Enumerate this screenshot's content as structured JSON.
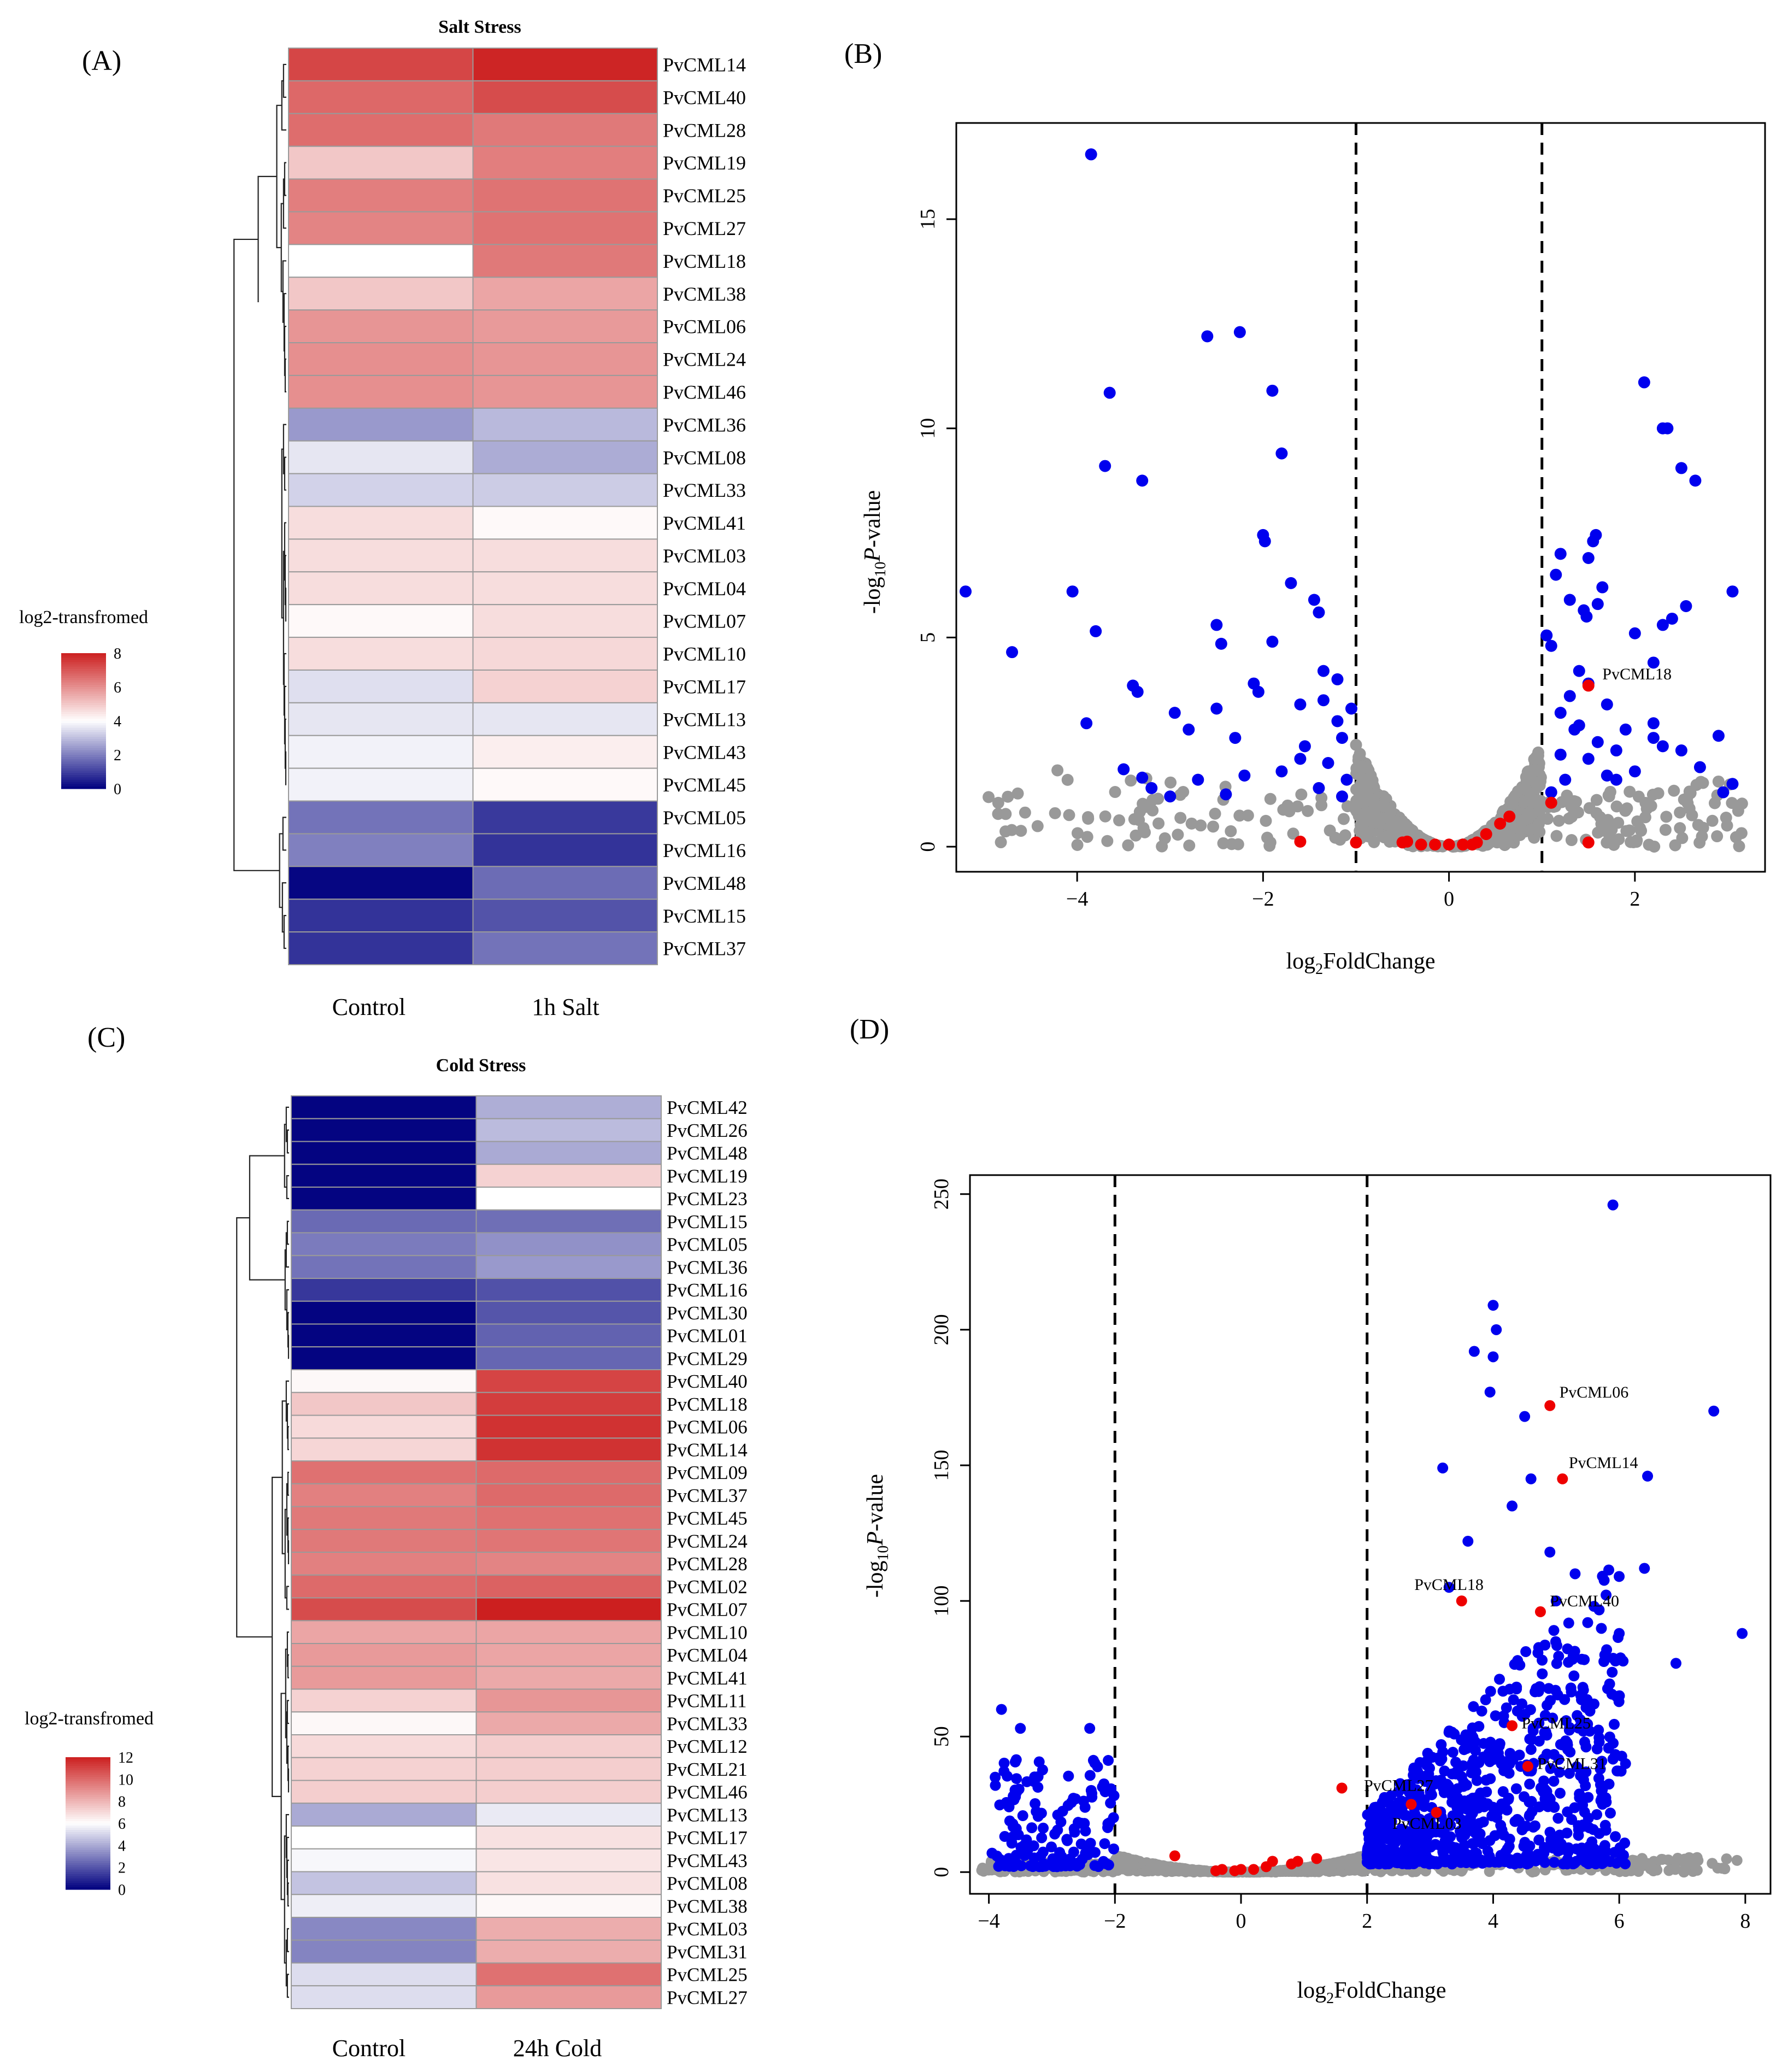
{
  "panel_labels": [
    "(A)",
    "(B)",
    "(C)",
    "(D)"
  ],
  "colors": {
    "low": "#00007f",
    "mid": "#ffffff",
    "high": "#cc1f1f",
    "up_sig": "#0000ee",
    "nonsig": "#999999",
    "cml": "#ee0000"
  },
  "chart_data": [
    {
      "id": "A",
      "type": "heatmap",
      "title": "Salt Stress",
      "columns": [
        "Control",
        "1h Salt"
      ],
      "rows": [
        "PvCML14",
        "PvCML40",
        "PvCML28",
        "PvCML19",
        "PvCML25",
        "PvCML27",
        "PvCML18",
        "PvCML38",
        "PvCML06",
        "PvCML24",
        "PvCML46",
        "PvCML36",
        "PvCML08",
        "PvCML33",
        "PvCML41",
        "PvCML03",
        "PvCML04",
        "PvCML07",
        "PvCML10",
        "PvCML17",
        "PvCML13",
        "PvCML43",
        "PvCML45",
        "PvCML05",
        "PvCML16",
        "PvCML48",
        "PvCML15",
        "PvCML37"
      ],
      "values": [
        [
          7.3,
          7.9
        ],
        [
          6.7,
          7.2
        ],
        [
          6.6,
          6.4
        ],
        [
          5.0,
          6.3
        ],
        [
          6.3,
          6.5
        ],
        [
          6.2,
          6.5
        ],
        [
          4.0,
          6.4
        ],
        [
          5.0,
          5.6
        ],
        [
          5.9,
          5.8
        ],
        [
          6.0,
          5.9
        ],
        [
          6.0,
          5.9
        ],
        [
          2.4,
          2.9
        ],
        [
          3.6,
          2.7
        ],
        [
          3.3,
          3.2
        ],
        [
          4.6,
          4.1
        ],
        [
          4.6,
          4.6
        ],
        [
          4.6,
          4.6
        ],
        [
          4.1,
          4.6
        ],
        [
          4.6,
          4.7
        ],
        [
          3.5,
          4.8
        ],
        [
          3.6,
          3.6
        ],
        [
          3.8,
          4.3
        ],
        [
          3.8,
          4.1
        ],
        [
          1.8,
          0.9
        ],
        [
          2.0,
          0.8
        ],
        [
          0.1,
          1.7
        ],
        [
          0.8,
          1.3
        ],
        [
          0.8,
          1.8
        ]
      ],
      "legend": {
        "title": "log2-transfromed",
        "ticks": [
          0,
          2,
          4,
          6,
          8
        ],
        "range": [
          0,
          8
        ]
      }
    },
    {
      "id": "B",
      "type": "scatter",
      "xlabel": "log2FoldChange",
      "ylabel": "-log10P-value",
      "xticks": [
        -4,
        -2,
        0,
        2
      ],
      "yticks": [
        0,
        5,
        10,
        15
      ],
      "xlim": [
        -5.3,
        3.4
      ],
      "ylim": [
        -0.6,
        17.3
      ],
      "thresholds": [
        -1,
        1
      ],
      "funnel_k": 2.5,
      "nonsig_count": 720,
      "sig_blue": [
        [
          -5.2,
          6.1
        ],
        [
          -4.7,
          4.65
        ],
        [
          -4.05,
          6.1
        ],
        [
          -3.9,
          2.95
        ],
        [
          -3.8,
          5.15
        ],
        [
          -3.85,
          16.55
        ],
        [
          -3.7,
          9.1
        ],
        [
          -3.65,
          10.85
        ],
        [
          -3.3,
          8.75
        ],
        [
          -3.4,
          3.85
        ],
        [
          -3.35,
          3.7
        ],
        [
          -2.6,
          12.2
        ],
        [
          -2.25,
          12.3
        ],
        [
          -1.9,
          10.9
        ],
        [
          -1.8,
          9.4
        ],
        [
          -2.0,
          7.45
        ],
        [
          -1.98,
          7.3
        ],
        [
          -2.5,
          5.3
        ],
        [
          -2.45,
          4.85
        ],
        [
          -2.95,
          3.2
        ],
        [
          -2.8,
          2.8
        ],
        [
          -2.5,
          3.3
        ],
        [
          -2.3,
          2.6
        ],
        [
          -1.9,
          4.9
        ],
        [
          -1.7,
          6.3
        ],
        [
          -1.45,
          5.9
        ],
        [
          -1.4,
          5.6
        ],
        [
          -1.2,
          3.0
        ],
        [
          -1.15,
          2.6
        ],
        [
          -1.35,
          3.5
        ],
        [
          -1.6,
          2.1
        ],
        [
          -1.1,
          1.6
        ],
        [
          -1.4,
          1.4
        ],
        [
          -3.5,
          1.85
        ],
        [
          -3.3,
          1.65
        ],
        [
          -3.2,
          1.4
        ],
        [
          -3.0,
          1.2
        ],
        [
          -2.1,
          3.9
        ],
        [
          -2.05,
          3.7
        ],
        [
          -2.7,
          1.6
        ],
        [
          -2.4,
          1.25
        ],
        [
          -1.55,
          2.4
        ],
        [
          -1.3,
          2.0
        ],
        [
          -1.15,
          1.2
        ],
        [
          -1.6,
          3.4
        ],
        [
          -1.8,
          1.8
        ],
        [
          -2.2,
          1.7
        ],
        [
          -1.2,
          4.0
        ],
        [
          -1.05,
          3.3
        ],
        [
          -1.35,
          4.2
        ],
        [
          1.05,
          5.05
        ],
        [
          1.1,
          4.8
        ],
        [
          1.15,
          6.5
        ],
        [
          1.2,
          7.0
        ],
        [
          1.3,
          5.9
        ],
        [
          1.5,
          6.9
        ],
        [
          1.55,
          7.3
        ],
        [
          1.58,
          7.45
        ],
        [
          1.45,
          5.65
        ],
        [
          1.48,
          5.5
        ],
        [
          1.6,
          5.8
        ],
        [
          1.65,
          6.2
        ],
        [
          1.2,
          3.2
        ],
        [
          1.3,
          3.6
        ],
        [
          1.4,
          4.2
        ],
        [
          1.5,
          3.9
        ],
        [
          1.35,
          2.8
        ],
        [
          1.6,
          2.5
        ],
        [
          1.7,
          3.4
        ],
        [
          1.8,
          2.3
        ],
        [
          2.0,
          5.1
        ],
        [
          2.1,
          11.1
        ],
        [
          2.3,
          10.0
        ],
        [
          2.35,
          10.0
        ],
        [
          2.5,
          9.05
        ],
        [
          2.65,
          8.75
        ],
        [
          2.3,
          5.3
        ],
        [
          2.2,
          4.4
        ],
        [
          2.4,
          5.45
        ],
        [
          2.55,
          5.75
        ],
        [
          3.05,
          6.1
        ],
        [
          2.2,
          2.6
        ],
        [
          2.3,
          2.4
        ],
        [
          2.5,
          2.3
        ],
        [
          2.7,
          1.9
        ],
        [
          2.9,
          2.65
        ],
        [
          3.05,
          1.5
        ],
        [
          2.0,
          1.8
        ],
        [
          1.8,
          1.6
        ],
        [
          1.25,
          1.6
        ],
        [
          1.1,
          1.3
        ],
        [
          1.9,
          2.8
        ],
        [
          1.5,
          2.1
        ],
        [
          1.4,
          2.9
        ],
        [
          1.7,
          1.7
        ],
        [
          1.2,
          2.2
        ],
        [
          2.2,
          2.95
        ],
        [
          2.95,
          1.3
        ]
      ],
      "cml_points": [
        [
          1.5,
          3.85
        ],
        [
          1.1,
          1.05
        ],
        [
          1.5,
          0.1
        ],
        [
          0.65,
          0.72
        ],
        [
          0.55,
          0.55
        ],
        [
          0.4,
          0.3
        ],
        [
          0.3,
          0.1
        ],
        [
          0.25,
          0.05
        ],
        [
          0.15,
          0.05
        ],
        [
          0.0,
          0.05
        ],
        [
          -0.15,
          0.05
        ],
        [
          -0.3,
          0.05
        ],
        [
          -0.45,
          0.12
        ],
        [
          -0.5,
          0.1
        ],
        [
          -1.6,
          0.12
        ],
        [
          -1.0,
          0.1
        ]
      ],
      "annotations": [
        {
          "text": "PvCML18",
          "x": 1.65,
          "y": 4.0
        }
      ]
    },
    {
      "id": "C",
      "type": "heatmap",
      "title": "Cold Stress",
      "columns": [
        "Control",
        "24h Cold"
      ],
      "rows": [
        "PvCML42",
        "PvCML26",
        "PvCML48",
        "PvCML19",
        "PvCML23",
        "PvCML15",
        "PvCML05",
        "PvCML36",
        "PvCML16",
        "PvCML30",
        "PvCML01",
        "PvCML29",
        "PvCML40",
        "PvCML18",
        "PvCML06",
        "PvCML14",
        "PvCML09",
        "PvCML37",
        "PvCML45",
        "PvCML24",
        "PvCML28",
        "PvCML02",
        "PvCML07",
        "PvCML10",
        "PvCML04",
        "PvCML41",
        "PvCML11",
        "PvCML33",
        "PvCML12",
        "PvCML21",
        "PvCML46",
        "PvCML13",
        "PvCML17",
        "PvCML43",
        "PvCML08",
        "PvCML38",
        "PvCML03",
        "PvCML31",
        "PvCML25",
        "PvCML27"
      ],
      "values": [
        [
          0.1,
          4.1
        ],
        [
          0.1,
          4.4
        ],
        [
          0.1,
          4.0
        ],
        [
          0.1,
          7.2
        ],
        [
          0.1,
          6.0
        ],
        [
          2.5,
          2.6
        ],
        [
          2.9,
          3.4
        ],
        [
          2.7,
          3.6
        ],
        [
          1.3,
          1.9
        ],
        [
          0.1,
          2.0
        ],
        [
          0.1,
          2.3
        ],
        [
          0.1,
          2.4
        ],
        [
          6.2,
          11.0
        ],
        [
          7.5,
          11.2
        ],
        [
          7.0,
          11.5
        ],
        [
          7.1,
          11.5
        ],
        [
          9.8,
          10.0
        ],
        [
          9.4,
          10.0
        ],
        [
          9.6,
          9.8
        ],
        [
          9.6,
          9.7
        ],
        [
          9.4,
          9.3
        ],
        [
          10.0,
          10.2
        ],
        [
          10.8,
          12.0
        ],
        [
          8.4,
          8.4
        ],
        [
          8.7,
          8.4
        ],
        [
          8.7,
          8.3
        ],
        [
          7.2,
          8.8
        ],
        [
          6.2,
          8.3
        ],
        [
          7.0,
          7.3
        ],
        [
          7.2,
          7.3
        ],
        [
          7.3,
          7.3
        ],
        [
          4.0,
          5.5
        ],
        [
          6.0,
          6.8
        ],
        [
          5.8,
          6.7
        ],
        [
          4.6,
          6.8
        ],
        [
          5.6,
          6.2
        ],
        [
          3.2,
          8.2
        ],
        [
          3.1,
          8.2
        ],
        [
          5.2,
          9.8
        ],
        [
          5.2,
          8.7
        ]
      ],
      "legend": {
        "title": "log2-transfromed",
        "ticks": [
          0,
          2,
          4,
          6,
          8,
          10,
          12
        ],
        "range": [
          0,
          12
        ]
      }
    },
    {
      "id": "D",
      "type": "scatter",
      "xlabel": "log2FoldChange",
      "ylabel": "-log10P-value",
      "xticks": [
        -4,
        -2,
        0,
        2,
        4,
        6,
        8
      ],
      "yticks": [
        0,
        50,
        100,
        150,
        200,
        250
      ],
      "xlim": [
        -4.3,
        8.4
      ],
      "ylim": [
        -8,
        257
      ],
      "thresholds": [
        -2,
        2
      ],
      "funnel_k": 6.5,
      "nonsig_count": 1100,
      "blue_left_count": 140,
      "blue_right_count": 820,
      "sig_blue": [
        [
          5.9,
          246
        ],
        [
          4.0,
          209
        ],
        [
          4.05,
          200
        ],
        [
          4.0,
          190
        ],
        [
          3.7,
          192
        ],
        [
          3.95,
          177
        ],
        [
          4.5,
          168
        ],
        [
          7.5,
          170
        ],
        [
          6.45,
          146
        ],
        [
          3.2,
          149
        ],
        [
          4.6,
          145
        ],
        [
          6.4,
          112
        ],
        [
          7.95,
          88
        ],
        [
          6.9,
          77
        ],
        [
          -3.8,
          60
        ],
        [
          -3.5,
          53
        ],
        [
          -3.9,
          35
        ],
        [
          -2.4,
          53
        ],
        [
          -3.95,
          7
        ],
        [
          4.3,
          135
        ],
        [
          3.6,
          122
        ],
        [
          4.9,
          118
        ],
        [
          5.3,
          110
        ],
        [
          3.3,
          105
        ],
        [
          5.0,
          100
        ],
        [
          5.6,
          98
        ],
        [
          5.5,
          92
        ],
        [
          6.0,
          88
        ],
        [
          5.8,
          82
        ],
        [
          6.1,
          40
        ],
        [
          5.7,
          38
        ],
        [
          5.6,
          62
        ]
      ],
      "cml_points": [
        [
          4.9,
          172
        ],
        [
          5.1,
          145
        ],
        [
          3.5,
          100
        ],
        [
          4.75,
          96
        ],
        [
          4.3,
          54
        ],
        [
          4.55,
          39
        ],
        [
          1.6,
          31
        ],
        [
          2.7,
          25
        ],
        [
          3.1,
          22
        ],
        [
          1.2,
          5
        ],
        [
          0.9,
          4
        ],
        [
          0.8,
          3
        ],
        [
          0.5,
          4
        ],
        [
          0.4,
          2
        ],
        [
          0.2,
          1
        ],
        [
          0.0,
          1
        ],
        [
          -0.1,
          0.5
        ],
        [
          -0.3,
          1
        ],
        [
          -0.4,
          0.5
        ],
        [
          -1.05,
          6
        ]
      ],
      "annotations": [
        {
          "text": "PvCML06",
          "x": 5.05,
          "y": 175
        },
        {
          "text": "PvCML14",
          "x": 5.2,
          "y": 149
        },
        {
          "text": "PvCML18",
          "x": 2.75,
          "y": 104
        },
        {
          "text": "PvCML40",
          "x": 4.9,
          "y": 98
        },
        {
          "text": "PvCML25",
          "x": 4.45,
          "y": 53
        },
        {
          "text": "PvCML31",
          "x": 4.7,
          "y": 38
        },
        {
          "text": "PvCML27",
          "x": 1.95,
          "y": 30
        },
        {
          "text": "PvCML03",
          "x": 2.4,
          "y": 16
        }
      ]
    }
  ]
}
